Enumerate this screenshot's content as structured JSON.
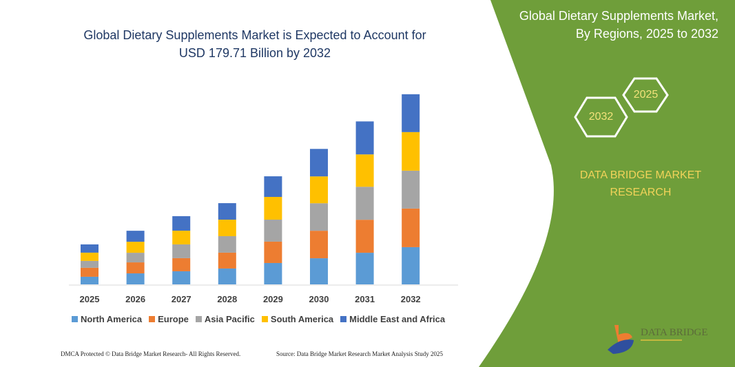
{
  "chart_data": {
    "type": "bar",
    "stacked": true,
    "title": "Global Dietary Supplements Market is Expected to Account for USD 179.71 Billion by 2032",
    "categories": [
      "2025",
      "2026",
      "2027",
      "2028",
      "2029",
      "2030",
      "2031",
      "2032"
    ],
    "series": [
      {
        "name": "North America",
        "color": "#5b9bd5",
        "values": [
          7.2,
          10.4,
          12.4,
          15.0,
          20.2,
          24.7,
          29.9,
          35.2
        ]
      },
      {
        "name": "Europe",
        "color": "#ed7d31",
        "values": [
          8.5,
          10.4,
          12.4,
          15.0,
          20.2,
          26.0,
          31.2,
          36.5
        ]
      },
      {
        "name": "Asia Pacific",
        "color": "#a5a5a5",
        "values": [
          6.5,
          9.1,
          13.0,
          15.6,
          20.8,
          26.0,
          31.2,
          35.8
        ]
      },
      {
        "name": "South America",
        "color": "#ffc000",
        "values": [
          7.8,
          10.4,
          13.0,
          15.6,
          21.5,
          25.4,
          30.6,
          36.5
        ]
      },
      {
        "name": "Middle East and Africa",
        "color": "#4472c4",
        "values": [
          7.8,
          10.4,
          13.7,
          15.6,
          19.5,
          26.0,
          31.2,
          35.8
        ]
      }
    ],
    "xlabel": "",
    "ylabel": "",
    "y_axis_shown": false,
    "grid": false,
    "legend_position": "bottom"
  },
  "header": {
    "title_line1": "Global Dietary Supplements Market is Expected to Account for",
    "title_line2": "USD 179.71 Billion by 2032"
  },
  "side_panel": {
    "title_line1": "Global Dietary Supplements Market,",
    "title_line2": "By Regions, 2025 to 2032",
    "hex_end_year": "2032",
    "hex_start_year": "2025",
    "brand_line1": "DATA BRIDGE MARKET",
    "brand_line2": "RESEARCH",
    "logo_text": "DATA BRIDGE",
    "panel_color": "#6f9e3a"
  },
  "footer": {
    "left": "DMCA Protected © Data Bridge Market Research- All Rights Reserved.",
    "right": "Source: Data Bridge Market Research Market Analysis Study 2025"
  }
}
